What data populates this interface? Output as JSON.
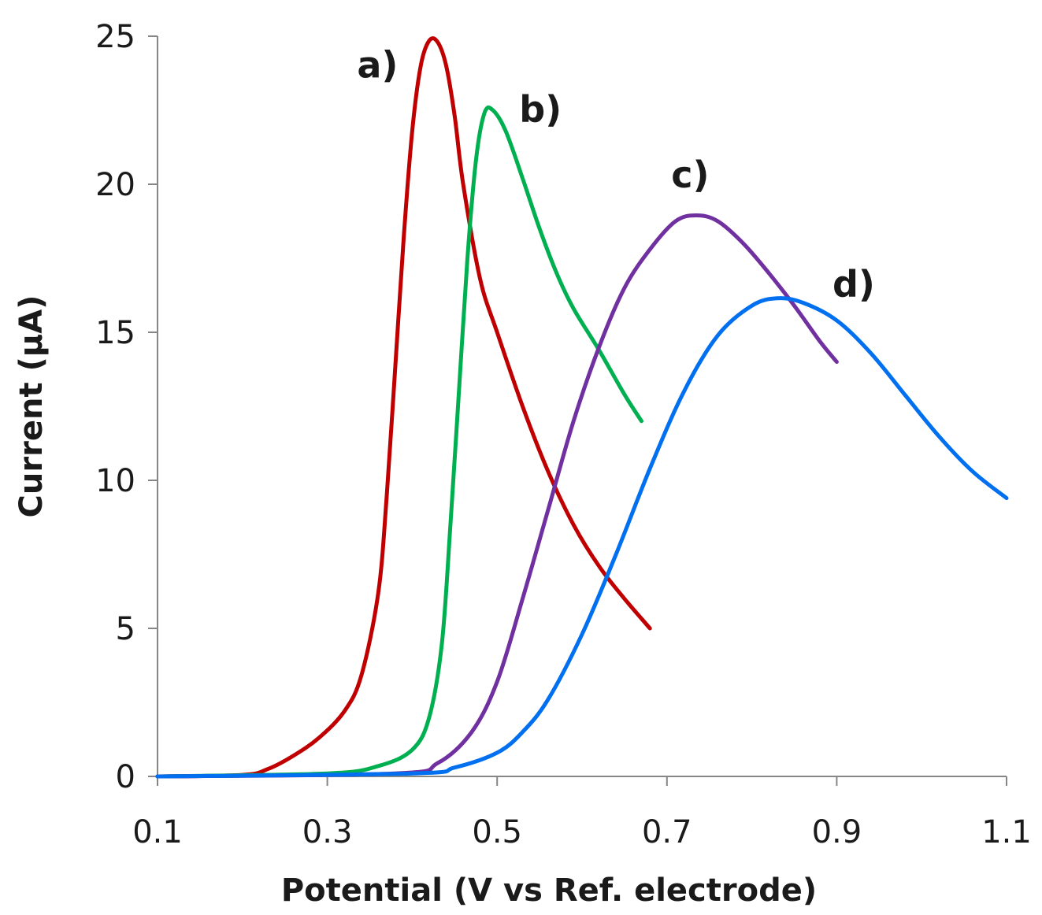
{
  "chart_data": {
    "type": "line",
    "title": "",
    "xlabel": "Potential (V vs Ref. electrode)",
    "ylabel": "Current (μA)",
    "xlim": [
      0.1,
      1.1
    ],
    "ylim": [
      0,
      25
    ],
    "grid": false,
    "x_ticks": [
      0.1,
      0.3,
      0.5,
      0.7,
      0.9,
      1.1
    ],
    "x_tick_labels": [
      "0.1",
      "0.3",
      "0.5",
      "0.7",
      "0.9",
      "1.1"
    ],
    "y_ticks": [
      0,
      5,
      10,
      15,
      20,
      25
    ],
    "y_tick_labels": [
      "0",
      "5",
      "10",
      "15",
      "20",
      "25"
    ],
    "series": [
      {
        "name": "a)",
        "color": "#c00000",
        "points": [
          [
            0.1,
            0.0
          ],
          [
            0.2,
            0.05
          ],
          [
            0.23,
            0.25
          ],
          [
            0.26,
            0.7
          ],
          [
            0.29,
            1.3
          ],
          [
            0.32,
            2.2
          ],
          [
            0.34,
            3.4
          ],
          [
            0.36,
            6.2
          ],
          [
            0.37,
            9.5
          ],
          [
            0.38,
            13.8
          ],
          [
            0.39,
            18.2
          ],
          [
            0.4,
            21.8
          ],
          [
            0.41,
            24.0
          ],
          [
            0.42,
            24.85
          ],
          [
            0.43,
            24.8
          ],
          [
            0.44,
            24.0
          ],
          [
            0.45,
            22.3
          ],
          [
            0.46,
            20.0
          ],
          [
            0.48,
            16.8
          ],
          [
            0.5,
            15.0
          ],
          [
            0.53,
            12.5
          ],
          [
            0.56,
            10.3
          ],
          [
            0.59,
            8.5
          ],
          [
            0.62,
            7.1
          ],
          [
            0.65,
            6.0
          ],
          [
            0.68,
            5.0
          ]
        ],
        "label_pos": [
          0.335,
          23.6
        ]
      },
      {
        "name": "b)",
        "color": "#00b050",
        "points": [
          [
            0.1,
            0.0
          ],
          [
            0.3,
            0.1
          ],
          [
            0.36,
            0.35
          ],
          [
            0.4,
            0.9
          ],
          [
            0.42,
            2.0
          ],
          [
            0.435,
            4.5
          ],
          [
            0.445,
            8.5
          ],
          [
            0.455,
            13.0
          ],
          [
            0.465,
            17.5
          ],
          [
            0.475,
            20.8
          ],
          [
            0.485,
            22.4
          ],
          [
            0.495,
            22.5
          ],
          [
            0.51,
            21.8
          ],
          [
            0.53,
            20.2
          ],
          [
            0.55,
            18.5
          ],
          [
            0.57,
            17.0
          ],
          [
            0.59,
            15.8
          ],
          [
            0.62,
            14.4
          ],
          [
            0.65,
            12.9
          ],
          [
            0.67,
            12.0
          ]
        ],
        "label_pos": [
          0.526,
          22.1
        ]
      },
      {
        "name": "c)",
        "color": "#7030a0",
        "points": [
          [
            0.1,
            0.0
          ],
          [
            0.38,
            0.1
          ],
          [
            0.43,
            0.45
          ],
          [
            0.47,
            1.5
          ],
          [
            0.5,
            3.2
          ],
          [
            0.53,
            6.0
          ],
          [
            0.56,
            9.0
          ],
          [
            0.59,
            12.0
          ],
          [
            0.62,
            14.5
          ],
          [
            0.65,
            16.5
          ],
          [
            0.68,
            17.8
          ],
          [
            0.71,
            18.75
          ],
          [
            0.735,
            18.95
          ],
          [
            0.76,
            18.75
          ],
          [
            0.79,
            18.0
          ],
          [
            0.82,
            17.0
          ],
          [
            0.85,
            15.9
          ],
          [
            0.88,
            14.7
          ],
          [
            0.9,
            14.0
          ]
        ],
        "label_pos": [
          0.705,
          19.9
        ]
      },
      {
        "name": "d)",
        "color": "#0070f0",
        "points": [
          [
            0.1,
            0.0
          ],
          [
            0.4,
            0.1
          ],
          [
            0.45,
            0.3
          ],
          [
            0.5,
            0.8
          ],
          [
            0.53,
            1.5
          ],
          [
            0.56,
            2.6
          ],
          [
            0.6,
            4.8
          ],
          [
            0.64,
            7.5
          ],
          [
            0.68,
            10.4
          ],
          [
            0.72,
            13.0
          ],
          [
            0.76,
            14.9
          ],
          [
            0.8,
            15.9
          ],
          [
            0.83,
            16.15
          ],
          [
            0.86,
            16.0
          ],
          [
            0.9,
            15.4
          ],
          [
            0.94,
            14.3
          ],
          [
            0.98,
            12.9
          ],
          [
            1.02,
            11.5
          ],
          [
            1.06,
            10.3
          ],
          [
            1.1,
            9.4
          ]
        ],
        "label_pos": [
          0.895,
          16.2
        ]
      }
    ]
  }
}
